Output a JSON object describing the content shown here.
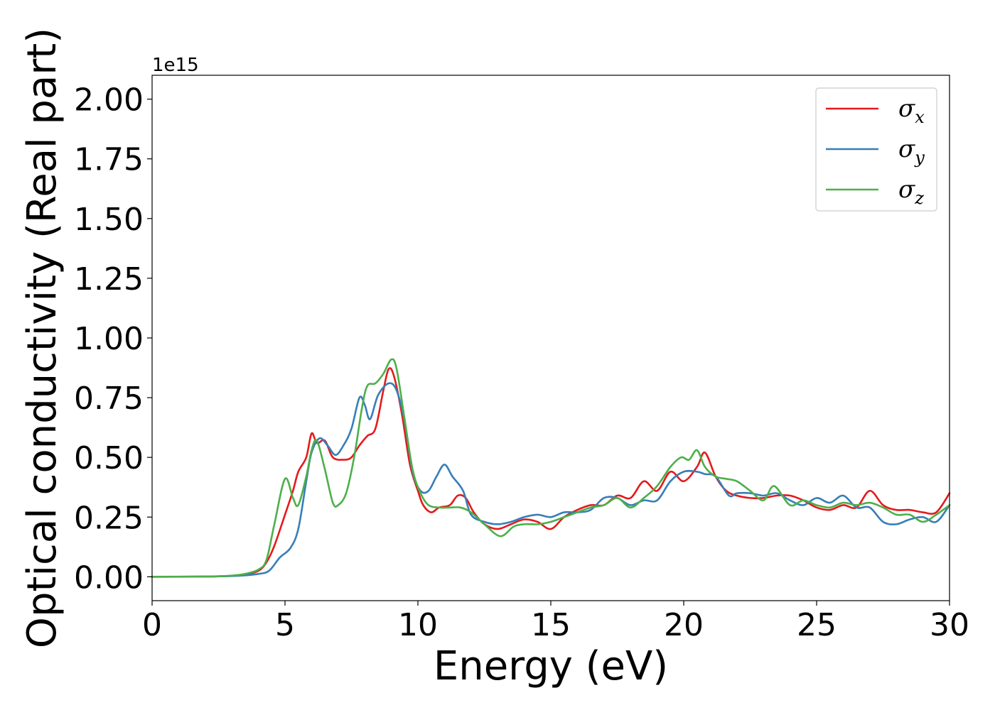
{
  "chart_data": {
    "type": "line",
    "xlabel": "Energy (eV)",
    "ylabel": "Optical conductivity (Real part)",
    "y_offset_label": "1e15",
    "xlim": [
      0,
      30
    ],
    "ylim": [
      -0.1,
      2.1
    ],
    "x_ticks": [
      0,
      5,
      10,
      15,
      20,
      25,
      30
    ],
    "x_tick_labels": [
      "0",
      "5",
      "10",
      "15",
      "20",
      "25",
      "30"
    ],
    "y_ticks": [
      0.0,
      0.25,
      0.5,
      0.75,
      1.0,
      1.25,
      1.5,
      1.75,
      2.0
    ],
    "y_tick_labels": [
      "0.00",
      "0.25",
      "0.50",
      "0.75",
      "1.00",
      "1.25",
      "1.50",
      "1.75",
      "2.00"
    ],
    "grid": false,
    "legend_position": "top-right",
    "series": [
      {
        "name": "σx",
        "legend_symbol": "σ",
        "legend_subscript": "x",
        "color": "#e41a1c",
        "points": [
          [
            0,
            0
          ],
          [
            2,
            0.001
          ],
          [
            3,
            0.004
          ],
          [
            3.5,
            0.01
          ],
          [
            4,
            0.025
          ],
          [
            4.3,
            0.06
          ],
          [
            4.6,
            0.13
          ],
          [
            5,
            0.26
          ],
          [
            5.3,
            0.36
          ],
          [
            5.5,
            0.44
          ],
          [
            5.8,
            0.5
          ],
          [
            6,
            0.6
          ],
          [
            6.2,
            0.56
          ],
          [
            6.5,
            0.57
          ],
          [
            6.8,
            0.5
          ],
          [
            7.2,
            0.49
          ],
          [
            7.5,
            0.5
          ],
          [
            7.8,
            0.55
          ],
          [
            8.1,
            0.59
          ],
          [
            8.4,
            0.62
          ],
          [
            8.7,
            0.78
          ],
          [
            8.9,
            0.87
          ],
          [
            9.1,
            0.84
          ],
          [
            9.4,
            0.68
          ],
          [
            9.7,
            0.47
          ],
          [
            10,
            0.36
          ],
          [
            10.2,
            0.3
          ],
          [
            10.5,
            0.27
          ],
          [
            10.8,
            0.29
          ],
          [
            11.2,
            0.3
          ],
          [
            11.5,
            0.34
          ],
          [
            11.8,
            0.33
          ],
          [
            12.1,
            0.27
          ],
          [
            12.5,
            0.22
          ],
          [
            13,
            0.2
          ],
          [
            13.5,
            0.22
          ],
          [
            14,
            0.24
          ],
          [
            14.5,
            0.23
          ],
          [
            15,
            0.2
          ],
          [
            15.5,
            0.25
          ],
          [
            16,
            0.28
          ],
          [
            16.5,
            0.3
          ],
          [
            17,
            0.3
          ],
          [
            17.5,
            0.34
          ],
          [
            18,
            0.33
          ],
          [
            18.5,
            0.4
          ],
          [
            19,
            0.36
          ],
          [
            19.5,
            0.44
          ],
          [
            20,
            0.4
          ],
          [
            20.5,
            0.46
          ],
          [
            20.8,
            0.52
          ],
          [
            21.2,
            0.42
          ],
          [
            21.6,
            0.36
          ],
          [
            22,
            0.34
          ],
          [
            22.5,
            0.33
          ],
          [
            23,
            0.33
          ],
          [
            23.5,
            0.34
          ],
          [
            24,
            0.34
          ],
          [
            24.5,
            0.32
          ],
          [
            25,
            0.29
          ],
          [
            25.5,
            0.28
          ],
          [
            26,
            0.3
          ],
          [
            26.5,
            0.29
          ],
          [
            27,
            0.36
          ],
          [
            27.5,
            0.3
          ],
          [
            28,
            0.28
          ],
          [
            28.5,
            0.28
          ],
          [
            29,
            0.27
          ],
          [
            29.5,
            0.27
          ],
          [
            30,
            0.35
          ]
        ]
      },
      {
        "name": "σy",
        "legend_symbol": "σ",
        "legend_subscript": "y",
        "color": "#377eb8",
        "points": [
          [
            0,
            0
          ],
          [
            2,
            0.001
          ],
          [
            3,
            0.003
          ],
          [
            3.5,
            0.006
          ],
          [
            4,
            0.012
          ],
          [
            4.4,
            0.025
          ],
          [
            4.8,
            0.08
          ],
          [
            5.2,
            0.12
          ],
          [
            5.5,
            0.2
          ],
          [
            5.8,
            0.4
          ],
          [
            6,
            0.52
          ],
          [
            6.3,
            0.58
          ],
          [
            6.6,
            0.55
          ],
          [
            6.9,
            0.51
          ],
          [
            7.2,
            0.55
          ],
          [
            7.5,
            0.62
          ],
          [
            7.8,
            0.75
          ],
          [
            8,
            0.72
          ],
          [
            8.2,
            0.66
          ],
          [
            8.5,
            0.76
          ],
          [
            8.9,
            0.81
          ],
          [
            9.2,
            0.78
          ],
          [
            9.5,
            0.65
          ],
          [
            9.8,
            0.44
          ],
          [
            10.1,
            0.36
          ],
          [
            10.4,
            0.36
          ],
          [
            10.7,
            0.42
          ],
          [
            11,
            0.47
          ],
          [
            11.3,
            0.42
          ],
          [
            11.7,
            0.36
          ],
          [
            12,
            0.26
          ],
          [
            12.5,
            0.23
          ],
          [
            13,
            0.22
          ],
          [
            13.5,
            0.23
          ],
          [
            14,
            0.25
          ],
          [
            14.5,
            0.26
          ],
          [
            15,
            0.25
          ],
          [
            15.5,
            0.27
          ],
          [
            16,
            0.27
          ],
          [
            16.5,
            0.28
          ],
          [
            17,
            0.33
          ],
          [
            17.5,
            0.33
          ],
          [
            18,
            0.3
          ],
          [
            18.5,
            0.32
          ],
          [
            19,
            0.32
          ],
          [
            19.5,
            0.4
          ],
          [
            20,
            0.44
          ],
          [
            20.5,
            0.44
          ],
          [
            20.8,
            0.43
          ],
          [
            21.2,
            0.42
          ],
          [
            21.7,
            0.34
          ],
          [
            22,
            0.35
          ],
          [
            22.5,
            0.35
          ],
          [
            23,
            0.34
          ],
          [
            23.5,
            0.35
          ],
          [
            24,
            0.32
          ],
          [
            24.5,
            0.3
          ],
          [
            25,
            0.33
          ],
          [
            25.5,
            0.31
          ],
          [
            26,
            0.34
          ],
          [
            26.5,
            0.29
          ],
          [
            27,
            0.29
          ],
          [
            27.5,
            0.23
          ],
          [
            28,
            0.22
          ],
          [
            28.5,
            0.24
          ],
          [
            29,
            0.25
          ],
          [
            29.5,
            0.23
          ],
          [
            30,
            0.3
          ]
        ]
      },
      {
        "name": "σz",
        "legend_symbol": "σ",
        "legend_subscript": "z",
        "color": "#4daf4a",
        "points": [
          [
            0,
            0
          ],
          [
            2,
            0.001
          ],
          [
            3,
            0.005
          ],
          [
            3.5,
            0.012
          ],
          [
            4,
            0.03
          ],
          [
            4.3,
            0.07
          ],
          [
            4.6,
            0.22
          ],
          [
            5,
            0.41
          ],
          [
            5.3,
            0.33
          ],
          [
            5.5,
            0.3
          ],
          [
            5.8,
            0.42
          ],
          [
            6,
            0.53
          ],
          [
            6.2,
            0.57
          ],
          [
            6.5,
            0.45
          ],
          [
            6.8,
            0.31
          ],
          [
            7,
            0.3
          ],
          [
            7.3,
            0.35
          ],
          [
            7.6,
            0.5
          ],
          [
            7.9,
            0.71
          ],
          [
            8.1,
            0.8
          ],
          [
            8.4,
            0.81
          ],
          [
            8.7,
            0.85
          ],
          [
            9,
            0.91
          ],
          [
            9.2,
            0.87
          ],
          [
            9.5,
            0.66
          ],
          [
            9.8,
            0.45
          ],
          [
            10.1,
            0.35
          ],
          [
            10.4,
            0.3
          ],
          [
            10.8,
            0.29
          ],
          [
            11.2,
            0.29
          ],
          [
            11.6,
            0.29
          ],
          [
            12,
            0.27
          ],
          [
            12.5,
            0.22
          ],
          [
            13.1,
            0.17
          ],
          [
            13.6,
            0.21
          ],
          [
            14,
            0.22
          ],
          [
            14.5,
            0.22
          ],
          [
            15,
            0.23
          ],
          [
            15.5,
            0.25
          ],
          [
            16,
            0.27
          ],
          [
            16.5,
            0.29
          ],
          [
            17,
            0.3
          ],
          [
            17.5,
            0.33
          ],
          [
            18,
            0.29
          ],
          [
            18.5,
            0.33
          ],
          [
            19,
            0.38
          ],
          [
            19.5,
            0.46
          ],
          [
            19.9,
            0.5
          ],
          [
            20.2,
            0.49
          ],
          [
            20.5,
            0.53
          ],
          [
            20.8,
            0.46
          ],
          [
            21.2,
            0.42
          ],
          [
            21.6,
            0.41
          ],
          [
            22,
            0.4
          ],
          [
            22.5,
            0.36
          ],
          [
            23,
            0.32
          ],
          [
            23.4,
            0.38
          ],
          [
            24,
            0.3
          ],
          [
            24.5,
            0.32
          ],
          [
            25,
            0.3
          ],
          [
            25.5,
            0.29
          ],
          [
            26,
            0.31
          ],
          [
            26.5,
            0.3
          ],
          [
            27,
            0.31
          ],
          [
            27.5,
            0.29
          ],
          [
            28,
            0.26
          ],
          [
            28.5,
            0.26
          ],
          [
            29,
            0.23
          ],
          [
            29.5,
            0.26
          ],
          [
            30,
            0.3
          ]
        ]
      }
    ]
  }
}
